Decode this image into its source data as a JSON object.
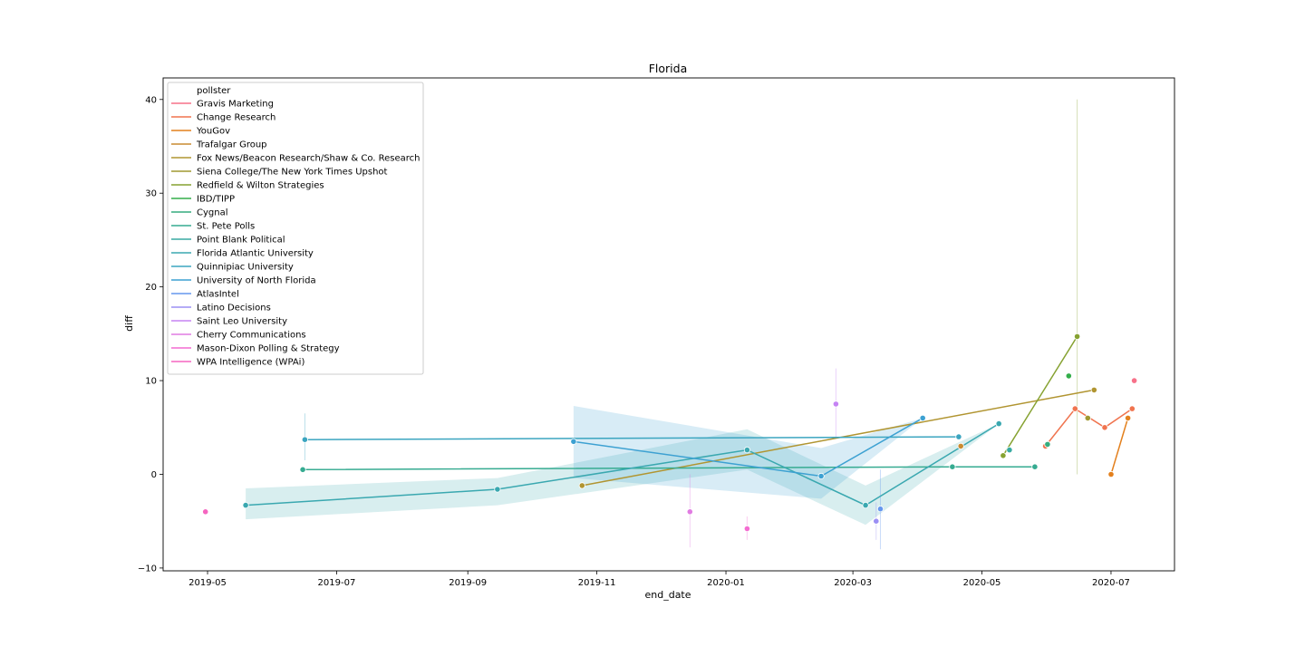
{
  "chart_data": {
    "type": "line",
    "title": "Florida",
    "xlabel": "end_date",
    "ylabel": "diff",
    "legend_title": "pollster",
    "legend_position": "upper-left",
    "grid": false,
    "xlim": [
      "2019-04-10",
      "2020-07-31"
    ],
    "ylim": [
      -10.3,
      42.3
    ],
    "x_ticks": [
      "2019-05-01",
      "2019-07-01",
      "2019-09-01",
      "2019-11-01",
      "2020-01-01",
      "2020-03-01",
      "2020-05-01",
      "2020-07-01"
    ],
    "x_tick_labels": [
      "2019-05",
      "2019-07",
      "2019-09",
      "2019-11",
      "2020-01",
      "2020-03",
      "2020-05",
      "2020-07"
    ],
    "y_ticks": [
      -10,
      0,
      10,
      20,
      30,
      40
    ],
    "y_tick_labels": [
      "−10",
      "0",
      "10",
      "20",
      "30",
      "40"
    ],
    "series": [
      {
        "name": "Gravis Marketing",
        "color": "#f77189",
        "points": [
          {
            "x": "2020-07-12",
            "y": 10.0
          }
        ]
      },
      {
        "name": "Change Research",
        "color": "#f0744f",
        "points": [
          {
            "x": "2020-05-31",
            "y": 3.0
          },
          {
            "x": "2020-06-14",
            "y": 7.0
          },
          {
            "x": "2020-06-28",
            "y": 5.0
          },
          {
            "x": "2020-07-11",
            "y": 7.0
          }
        ]
      },
      {
        "name": "YouGov",
        "color": "#e3801d",
        "points": [
          {
            "x": "2020-07-01",
            "y": 0.0
          },
          {
            "x": "2020-07-09",
            "y": 6.0
          }
        ]
      },
      {
        "name": "Trafalgar Group",
        "color": "#c98b31",
        "points": [
          {
            "x": "2020-04-21",
            "y": 3.0
          }
        ]
      },
      {
        "name": "Fox News/Beacon Research/Shaw & Co. Research",
        "color": "#b19531",
        "points": [
          {
            "x": "2019-10-25",
            "y": -1.2
          },
          {
            "x": "2020-06-23",
            "y": 9.0
          }
        ]
      },
      {
        "name": "Siena College/The New York Times Upshot",
        "color": "#a19931",
        "points": [
          {
            "x": "2020-06-20",
            "y": 6.0
          }
        ]
      },
      {
        "name": "Redfield & Wilton Strategies",
        "color": "#86a231",
        "points": [
          {
            "x": "2020-05-11",
            "y": 2.0
          },
          {
            "x": "2020-06-15",
            "y": 14.7
          }
        ],
        "error_ranges": [
          {
            "x": "2020-06-15",
            "low": 0.0,
            "high": 40.0
          }
        ]
      },
      {
        "name": "IBD/TIPP",
        "color": "#33ae4a",
        "points": [
          {
            "x": "2020-06-11",
            "y": 10.5
          }
        ]
      },
      {
        "name": "Cygnal",
        "color": "#35ac7e",
        "points": [
          {
            "x": "2020-06-01",
            "y": 3.2
          }
        ]
      },
      {
        "name": "St. Pete Polls",
        "color": "#36ab91",
        "points": [
          {
            "x": "2019-06-15",
            "y": 0.5
          },
          {
            "x": "2020-04-17",
            "y": 0.8
          },
          {
            "x": "2020-05-26",
            "y": 0.8
          }
        ]
      },
      {
        "name": "Point Blank Political",
        "color": "#38aaa2",
        "points": [
          {
            "x": "2020-05-14",
            "y": 2.6
          }
        ]
      },
      {
        "name": "Florida Atlantic University",
        "color": "#3aa8b0",
        "points": [
          {
            "x": "2019-05-19",
            "y": -3.3
          },
          {
            "x": "2019-09-15",
            "y": -1.6
          },
          {
            "x": "2020-01-11",
            "y": 2.6
          },
          {
            "x": "2020-03-07",
            "y": -3.3
          },
          {
            "x": "2020-05-09",
            "y": 5.4
          }
        ],
        "ci_band": [
          {
            "x": "2019-05-19",
            "low": -4.8,
            "high": -1.5
          },
          {
            "x": "2019-09-15",
            "low": -3.3,
            "high": -0.4
          },
          {
            "x": "2020-01-11",
            "low": 0.5,
            "high": 4.8
          },
          {
            "x": "2020-03-07",
            "low": -5.4,
            "high": -1.2
          },
          {
            "x": "2020-05-09",
            "low": 5.4,
            "high": 5.4
          }
        ]
      },
      {
        "name": "Quinnipiac University",
        "color": "#3ba5c0",
        "points": [
          {
            "x": "2019-06-16",
            "y": 3.7
          },
          {
            "x": "2020-04-20",
            "y": 4.0
          }
        ],
        "error_ranges": [
          {
            "x": "2019-06-16",
            "low": 1.5,
            "high": 6.5
          }
        ]
      },
      {
        "name": "University of North Florida",
        "color": "#3da1d2",
        "points": [
          {
            "x": "2019-10-21",
            "y": 3.5
          },
          {
            "x": "2020-02-15",
            "y": -0.2
          },
          {
            "x": "2020-04-03",
            "y": 6.0
          }
        ],
        "ci_band": [
          {
            "x": "2019-10-21",
            "low": -0.4,
            "high": 7.3
          },
          {
            "x": "2020-02-15",
            "low": -2.6,
            "high": 2.8
          },
          {
            "x": "2020-04-03",
            "low": 6.0,
            "high": 6.0
          }
        ]
      },
      {
        "name": "AtlasIntel",
        "color": "#6597ee",
        "points": [
          {
            "x": "2020-03-14",
            "y": -3.7
          }
        ],
        "error_ranges": [
          {
            "x": "2020-03-14",
            "low": -8.0,
            "high": 0.5
          }
        ]
      },
      {
        "name": "Latino Decisions",
        "color": "#9b8ff4",
        "points": [
          {
            "x": "2020-03-12",
            "y": -5.0
          }
        ],
        "error_ranges": [
          {
            "x": "2020-03-12",
            "low": -7.0,
            "high": -3.0
          }
        ]
      },
      {
        "name": "Saint Leo University",
        "color": "#c583f4",
        "points": [
          {
            "x": "2020-02-22",
            "y": 7.5
          }
        ],
        "error_ranges": [
          {
            "x": "2020-02-22",
            "low": 4.0,
            "high": 11.3
          }
        ]
      },
      {
        "name": "Cherry Communications",
        "color": "#e17ce2",
        "points": [
          {
            "x": "2019-12-15",
            "y": -4.0
          }
        ],
        "error_ranges": [
          {
            "x": "2019-12-15",
            "low": -7.8,
            "high": 0.0
          }
        ]
      },
      {
        "name": "Mason-Dixon Polling & Strategy",
        "color": "#f46cd1",
        "points": [
          {
            "x": "2020-01-11",
            "y": -5.8
          }
        ],
        "error_ranges": [
          {
            "x": "2020-01-11",
            "low": -7.0,
            "high": -4.5
          }
        ]
      },
      {
        "name": "WPA Intelligence (WPAi)",
        "color": "#f565c0",
        "points": [
          {
            "x": "2019-04-30",
            "y": -4.0
          }
        ]
      }
    ]
  }
}
